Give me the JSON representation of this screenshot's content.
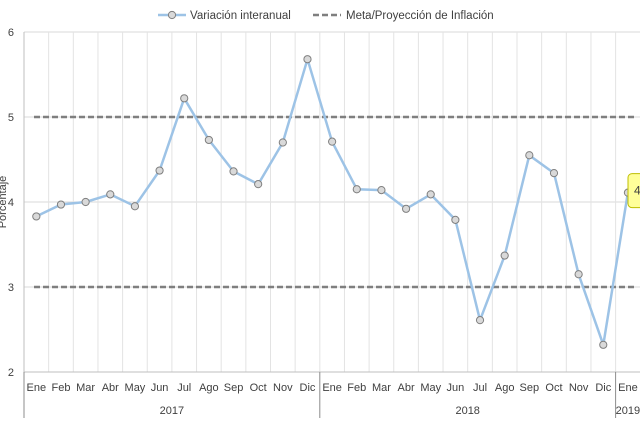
{
  "chart_data": {
    "type": "line",
    "title": "",
    "xlabel": "",
    "ylabel": "Porcentaje",
    "ylim": [
      2,
      6
    ],
    "yticks": [
      2,
      3,
      4,
      5,
      6
    ],
    "grid": true,
    "legend_position": "top",
    "categories": [
      "Ene",
      "Feb",
      "Mar",
      "Abr",
      "May",
      "Jun",
      "Jul",
      "Ago",
      "Sep",
      "Oct",
      "Nov",
      "Dic",
      "Ene",
      "Feb",
      "Mar",
      "Abr",
      "May",
      "Jun",
      "Jul",
      "Ago",
      "Sep",
      "Oct",
      "Nov",
      "Dic",
      "Ene"
    ],
    "year_groups": [
      {
        "label": "2017",
        "start": 0,
        "end": 11
      },
      {
        "label": "2018",
        "start": 12,
        "end": 23
      },
      {
        "label": "2019",
        "start": 24,
        "end": 24
      }
    ],
    "series": [
      {
        "name": "Variación interanual",
        "color": "#9dc3e6",
        "marker": "circle",
        "values": [
          3.83,
          3.97,
          4.0,
          4.09,
          3.95,
          4.37,
          5.22,
          4.73,
          4.36,
          4.21,
          4.7,
          5.68,
          4.71,
          4.15,
          4.14,
          3.92,
          4.09,
          3.79,
          2.61,
          3.37,
          4.55,
          4.34,
          3.15,
          2.32,
          4.11
        ]
      },
      {
        "name": "Meta/Proyección de Inflación",
        "color": "#7f7f7f",
        "style": "dashed",
        "bands": [
          3,
          5
        ]
      }
    ],
    "callout": {
      "text": "4",
      "index": 24
    }
  }
}
